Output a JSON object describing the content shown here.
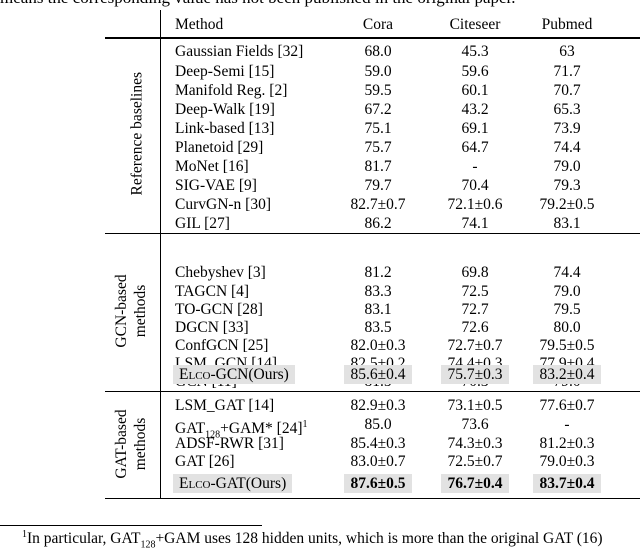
{
  "caption_fragment": "means the corresponding value has not been published in the original paper.",
  "header": {
    "method": "Method",
    "cora": "Cora",
    "citeseer": "Citeseer",
    "pubmed": "Pubmed"
  },
  "groups": {
    "reference": "Reference baselines",
    "gcn_line1": "GCN-based",
    "gcn_line2": "methods",
    "gat_line1": "GAT-based",
    "gat_line2": "methods"
  },
  "reference_rows": [
    {
      "method": "Gaussian Fields [32]",
      "cora": "68.0",
      "citeseer": "45.3",
      "pubmed": "63"
    },
    {
      "method": "Deep-Semi [15]",
      "cora": "59.0",
      "citeseer": "59.6",
      "pubmed": "71.7"
    },
    {
      "method": "Manifold Reg. [2]",
      "cora": "59.5",
      "citeseer": "60.1",
      "pubmed": "70.7"
    },
    {
      "method": "Deep-Walk [19]",
      "cora": "67.2",
      "citeseer": "43.2",
      "pubmed": "65.3"
    },
    {
      "method": "Link-based [13]",
      "cora": "75.1",
      "citeseer": "69.1",
      "pubmed": "73.9"
    },
    {
      "method": "Planetoid [29]",
      "cora": "75.7",
      "citeseer": "64.7",
      "pubmed": "74.4"
    },
    {
      "method": "MoNet [16]",
      "cora": "81.7",
      "citeseer": "-",
      "pubmed": "79.0"
    },
    {
      "method": "SIG-VAE [9]",
      "cora": "79.7",
      "citeseer": "70.4",
      "pubmed": "79.3"
    },
    {
      "method": "CurvGN-n [30]",
      "cora": "82.7±0.7",
      "citeseer": "72.1±0.6",
      "pubmed": "79.2±0.5"
    },
    {
      "method": "GIL [27]",
      "cora": "86.2",
      "citeseer": "74.1",
      "pubmed": "83.1"
    }
  ],
  "gcn_rows": [
    {
      "method": "Chebyshev [3]",
      "cora": "81.2",
      "citeseer": "69.8",
      "pubmed": "74.4"
    },
    {
      "method": "TAGCN [4]",
      "cora": "83.3",
      "citeseer": "72.5",
      "pubmed": "79.0"
    },
    {
      "method": "TO-GCN [28]",
      "cora": "83.1",
      "citeseer": "72.7",
      "pubmed": "79.5"
    },
    {
      "method": "DGCN [33]",
      "cora": "83.5",
      "citeseer": "72.6",
      "pubmed": "80.0"
    },
    {
      "method": "ConfGCN [25]",
      "cora": "82.0±0.3",
      "citeseer": "72.7±0.7",
      "pubmed": "79.5±0.5"
    },
    {
      "method": "LSM_GCN [14]",
      "cora": "82.5±0.2",
      "citeseer": "74.4±0.3",
      "pubmed": "77.9±0.4"
    },
    {
      "method": "GCN [11]",
      "cora": "81.5",
      "citeseer": "70.3",
      "pubmed": "79.0"
    }
  ],
  "gcn_ours": {
    "prefix": "E",
    "smallcaps": "lco",
    "suffix": "-GCN(Ours)",
    "cora": "85.6±0.4",
    "citeseer": "75.7±0.3",
    "pubmed": "83.2±0.4"
  },
  "gat_rows": [
    {
      "method": "LSM_GAT [14]",
      "cora": "82.9±0.3",
      "citeseer": "73.1±0.5",
      "pubmed": "77.6±0.7"
    },
    {
      "method_main": "GAT",
      "method_sub": "128",
      "method_rest": "+GAM* [24]",
      "method_sup": "1",
      "cora": "85.0",
      "citeseer": "73.6",
      "pubmed": "-"
    },
    {
      "method": "ADSF-RWR [31]",
      "cora": "85.4±0.3",
      "citeseer": "74.3±0.3",
      "pubmed": "81.2±0.3"
    },
    {
      "method": "GAT [26]",
      "cora": "83.0±0.7",
      "citeseer": "72.5±0.7",
      "pubmed": "79.0±0.3"
    }
  ],
  "gat_ours": {
    "prefix": "E",
    "smallcaps": "lco",
    "suffix": "-GAT(Ours)",
    "cora": "87.6±0.5",
    "citeseer": "76.7±0.4",
    "pubmed": "83.7±0.4"
  },
  "footnote": {
    "sup": "1",
    "text_a": "In particular, GAT",
    "sub": "128",
    "text_b": "+GAM uses 128 hidden units, which is more than the original GAT (16)"
  }
}
